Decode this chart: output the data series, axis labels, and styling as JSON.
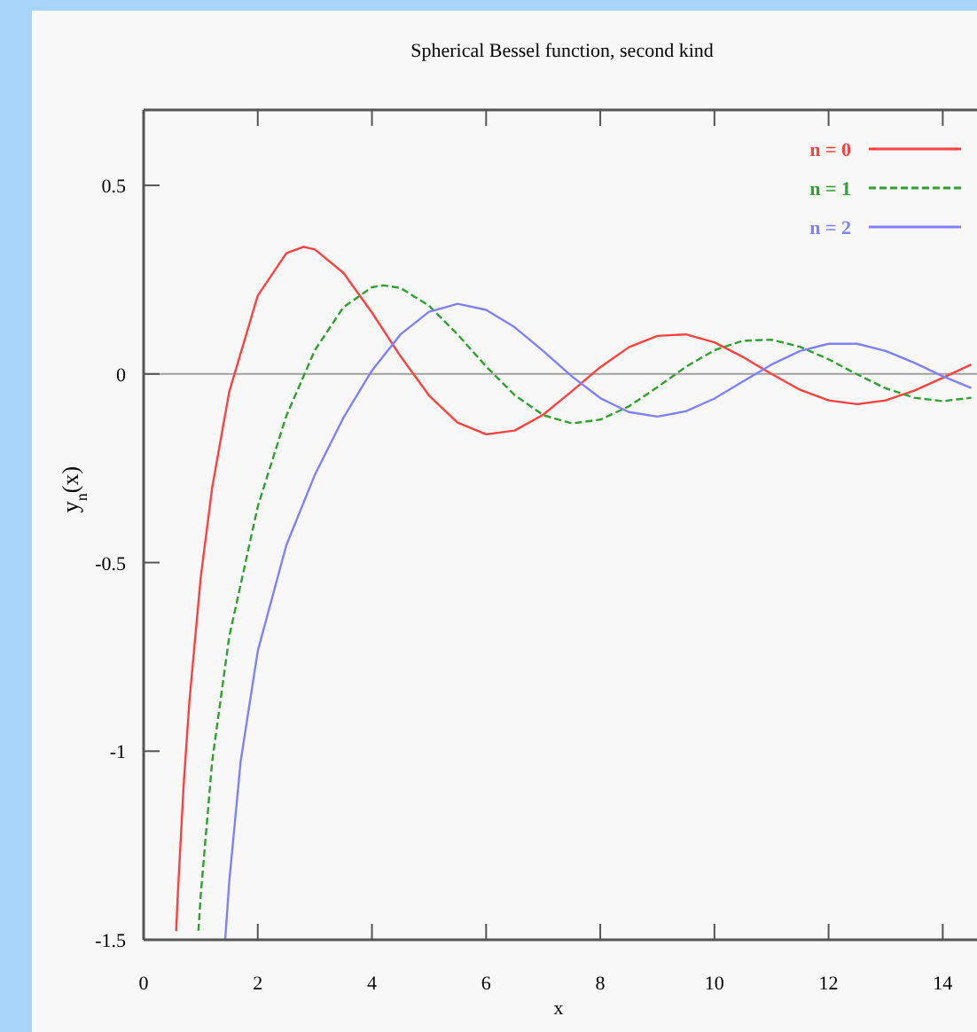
{
  "chart_data": {
    "type": "line",
    "title": "Spherical Bessel function, second kind",
    "xlabel": "x",
    "ylabel": "y$_{n}$(x)",
    "xlim": [
      0,
      14.6
    ],
    "ylim": [
      -1.5,
      0.7
    ],
    "xticks": [
      0,
      2,
      4,
      6,
      8,
      10,
      12,
      14
    ],
    "yticks": [
      {
        "value": 0.5,
        "label": "0.5"
      },
      0,
      {
        "value": -0.5,
        "label": "-0.5"
      },
      -1,
      {
        "value": -1.5,
        "label": "-1.5"
      }
    ],
    "grid": false,
    "legend": "top right",
    "ref_lines": [
      {
        "axis": "y",
        "value": 0,
        "color": "#a0a0a0"
      }
    ],
    "series": [
      {
        "name": "n = 0",
        "color": "#ff4040",
        "line_style": "solid",
        "x": [
          0.57,
          0.6,
          0.7,
          0.8,
          1,
          1.2,
          1.5,
          2,
          2.5,
          2.8,
          3,
          3.5,
          4,
          4.5,
          5,
          5.5,
          6,
          6.5,
          7,
          7.5,
          8,
          8.5,
          9,
          9.5,
          10,
          10.5,
          11,
          11.5,
          12,
          12.5,
          13,
          13.5,
          14,
          14.5
        ],
        "values": [
          -1.477,
          -1.376,
          -1.093,
          -0.871,
          -0.54,
          -0.302,
          -0.047,
          0.208,
          0.32,
          0.337,
          0.33,
          0.268,
          0.163,
          0.047,
          -0.057,
          -0.129,
          -0.16,
          -0.15,
          -0.108,
          -0.046,
          0.018,
          0.071,
          0.101,
          0.105,
          0.084,
          0.045,
          0,
          -0.042,
          -0.07,
          -0.08,
          -0.07,
          -0.044,
          -0.01,
          0.025
        ]
      },
      {
        "name": "n = 1",
        "color": "#30a030",
        "line_style": "dashed",
        "x": [
          0.96,
          1,
          1.2,
          1.5,
          2,
          2.5,
          3,
          3.5,
          4,
          4.2,
          4.5,
          5,
          5.5,
          6,
          6.5,
          7,
          7.5,
          8,
          8.5,
          9,
          9.5,
          10,
          10.5,
          11,
          11.5,
          12,
          12.5,
          13,
          13.5,
          14,
          14.5
        ],
        "values": [
          -1.476,
          -1.382,
          -1.028,
          -0.696,
          -0.351,
          -0.111,
          0.063,
          0.177,
          0.23,
          0.235,
          0.228,
          0.181,
          0.105,
          0.02,
          -0.056,
          -0.109,
          -0.131,
          -0.121,
          -0.086,
          -0.035,
          0.019,
          0.063,
          0.088,
          0.091,
          0.072,
          0.039,
          -0.001,
          -0.038,
          -0.063,
          -0.072,
          -0.063
        ]
      },
      {
        "name": "n = 2",
        "color": "#8080ff",
        "line_style": "solid",
        "x": [
          1.43,
          1.5,
          1.7,
          2,
          2.5,
          3,
          3.5,
          4,
          4.5,
          5,
          5.5,
          6,
          6.5,
          7,
          7.5,
          8,
          8.5,
          9,
          9.5,
          10,
          10.5,
          11,
          11.5,
          12,
          12.5,
          13,
          13.5,
          14,
          14.5
        ],
        "values": [
          -1.498,
          -1.346,
          -1.027,
          -0.734,
          -0.454,
          -0.267,
          -0.116,
          0.009,
          0.105,
          0.165,
          0.186,
          0.17,
          0.124,
          0.061,
          -0.006,
          -0.064,
          -0.101,
          -0.113,
          -0.099,
          -0.065,
          -0.02,
          0.025,
          0.061,
          0.08,
          0.08,
          0.061,
          0.03,
          -0.006,
          -0.037
        ]
      }
    ]
  }
}
